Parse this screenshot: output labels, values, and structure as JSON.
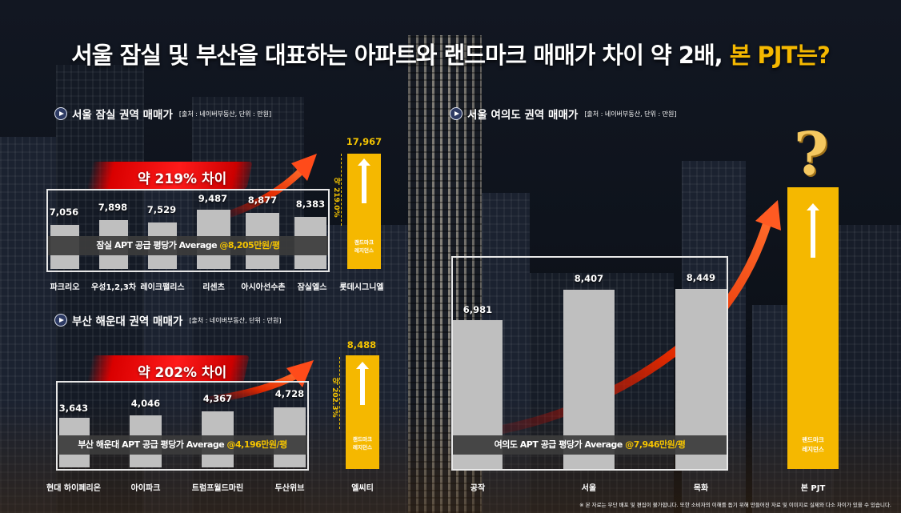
{
  "title": {
    "main": "서울 잠실 및 부산을 대표하는 아파트와 랜드마크 매매가 차이 약 2배, ",
    "highlight": "본 PJT는?"
  },
  "jamsil": {
    "heading": "서울 잠실 권역 매매가",
    "source": "[출처 : 네이버부동산, 단위 : 만원]",
    "diff_label": "약 219% 차이",
    "pct_label": "약 219.0%",
    "avg_prefix": "잠실 APT 공급 평당가 Average ",
    "avg_value": "@8,205만원/평",
    "categories": [
      "파크리오",
      "우성1,2,3차",
      "레이크팰리스",
      "리센츠",
      "아시아선수촌",
      "잠실엘스",
      "롯데시그니엘"
    ],
    "values": [
      "7,056",
      "7,898",
      "7,529",
      "9,487",
      "8,877",
      "8,383"
    ],
    "landmark_value": "17,967",
    "landmark_label_1": "랜드마크",
    "landmark_label_2": "레지던스"
  },
  "busan": {
    "heading": "부산 해운대 권역 매매가",
    "source": "[출처 : 네이버부동산, 단위 : 만원]",
    "diff_label": "약 202% 차이",
    "pct_label": "약 202.3%",
    "avg_prefix": "부산 해운대 APT 공급 평당가 Average ",
    "avg_value": "@4,196만원/평",
    "categories": [
      "현대 하이페리온",
      "아이파크",
      "트럼프월드마린",
      "두산위브",
      "엘씨티"
    ],
    "values": [
      "3,643",
      "4,046",
      "4,367",
      "4,728"
    ],
    "landmark_value": "8,488",
    "landmark_label_1": "랜드마크",
    "landmark_label_2": "레지던스"
  },
  "yeouido": {
    "heading": "서울 여의도 권역 매매가",
    "source": "[출처 : 네이버부동산, 단위 : 만원]",
    "avg_prefix": "여의도 APT 공급 평당가 Average ",
    "avg_value": "@7,946만원/평",
    "categories": [
      "공작",
      "서울",
      "목화",
      "본 PJT"
    ],
    "values": [
      "6,981",
      "8,407",
      "8,449"
    ],
    "landmark_label_1": "랜드마크",
    "landmark_label_2": "레지던스"
  },
  "chart_data": [
    {
      "type": "bar",
      "title": "서울 잠실 권역 매매가",
      "categories": [
        "파크리오",
        "우성1,2,3차",
        "레이크팰리스",
        "리센츠",
        "아시아선수촌",
        "잠실엘스",
        "롯데시그니엘"
      ],
      "values": [
        7056,
        7898,
        7529,
        9487,
        8877,
        8383,
        17967
      ]
    },
    {
      "type": "bar",
      "title": "부산 해운대 권역 매매가",
      "categories": [
        "현대 하이페리온",
        "아이파크",
        "트럼프월드마린",
        "두산위브",
        "엘씨티"
      ],
      "values": [
        3643,
        4046,
        4367,
        4728,
        8488
      ]
    },
    {
      "type": "bar",
      "title": "서울 여의도 권역 매매가",
      "categories": [
        "공작",
        "서울",
        "목화",
        "본 PJT"
      ],
      "values": [
        6981,
        8407,
        8449,
        null
      ]
    }
  ],
  "note": "※ 본 자료는 무단 배포 및 편집이 불가합니다. 또한 소비자의 이해를 돕기 위해 만들어진 자료 및 이미지로 실제와 다소 차이가 있을 수 있습니다.",
  "colors": {
    "accent": "#f5b800",
    "bar": "#bfbfbf",
    "arrow": "#ff3b1a"
  }
}
